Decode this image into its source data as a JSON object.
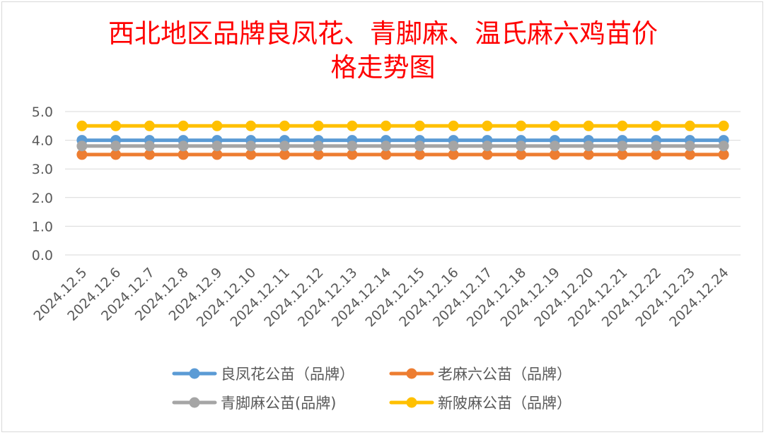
{
  "chart_data": {
    "type": "line",
    "title_line1": "西北地区品牌良凤花、青脚麻、温氏麻六鸡苗价",
    "title_line2": "格走势图",
    "title_color": "#ff0000",
    "xlabel": "",
    "ylabel": "",
    "ylim": [
      0,
      5
    ],
    "y_ticks": [
      "0.0",
      "1.0",
      "2.0",
      "3.0",
      "4.0",
      "5.0"
    ],
    "grid": true,
    "legend_position": "bottom",
    "categories": [
      "2024.12.5",
      "2024.12.6",
      "2024.12.7",
      "2024.12.8",
      "2024.12.9",
      "2024.12.10",
      "2024.12.11",
      "2024.12.12",
      "2024.12.13",
      "2024.12.14",
      "2024.12.15",
      "2024.12.16",
      "2024.12.17",
      "2024.12.18",
      "2024.12.19",
      "2024.12.20",
      "2024.12.21",
      "2024.12.22",
      "2024.12.23",
      "2024.12.24"
    ],
    "series": [
      {
        "name": "良凤花公苗（品牌）",
        "color": "#5b9bd5",
        "values": [
          4.0,
          4.0,
          4.0,
          4.0,
          4.0,
          4.0,
          4.0,
          4.0,
          4.0,
          4.0,
          4.0,
          4.0,
          4.0,
          4.0,
          4.0,
          4.0,
          4.0,
          4.0,
          4.0,
          4.0
        ]
      },
      {
        "name": "老麻六公苗（品牌）",
        "color": "#ed7d31",
        "values": [
          3.5,
          3.5,
          3.5,
          3.5,
          3.5,
          3.5,
          3.5,
          3.5,
          3.5,
          3.5,
          3.5,
          3.5,
          3.5,
          3.5,
          3.5,
          3.5,
          3.5,
          3.5,
          3.5,
          3.5
        ]
      },
      {
        "name": "青脚麻公苗(品牌)",
        "color": "#a5a5a5",
        "values": [
          3.8,
          3.8,
          3.8,
          3.8,
          3.8,
          3.8,
          3.8,
          3.8,
          3.8,
          3.8,
          3.8,
          3.8,
          3.8,
          3.8,
          3.8,
          3.8,
          3.8,
          3.8,
          3.8,
          3.8
        ]
      },
      {
        "name": "新陂麻公苗（品牌）",
        "color": "#ffc000",
        "values": [
          4.5,
          4.5,
          4.5,
          4.5,
          4.5,
          4.5,
          4.5,
          4.5,
          4.5,
          4.5,
          4.5,
          4.5,
          4.5,
          4.5,
          4.5,
          4.5,
          4.5,
          4.5,
          4.5,
          4.5
        ]
      }
    ]
  }
}
